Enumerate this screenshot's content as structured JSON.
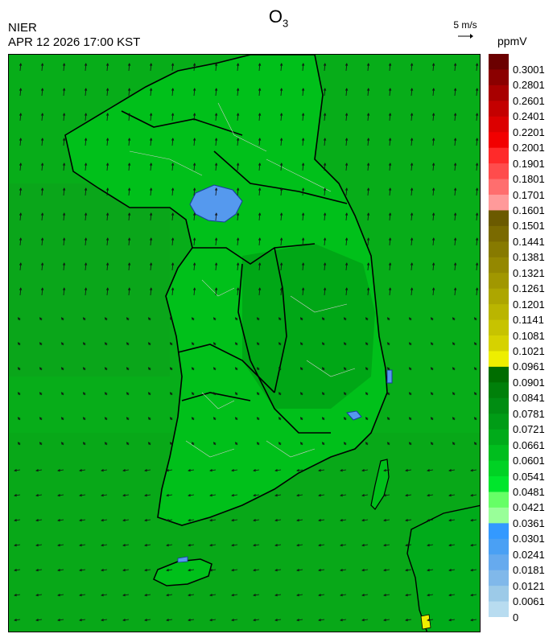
{
  "header": {
    "title_main": "O",
    "title_sub": "3",
    "agency": "NIER",
    "timestamp": "APR 12 2026 17:00 KST",
    "wind_reference": "5 m/s",
    "unit": "ppmV"
  },
  "legend": {
    "labels": [
      "0.3001",
      "0.2801",
      "0.2601",
      "0.2401",
      "0.2201",
      "0.2001",
      "0.1901",
      "0.1801",
      "0.1701",
      "0.1601",
      "0.1501",
      "0.1441",
      "0.1381",
      "0.1321",
      "0.1261",
      "0.1201",
      "0.1141",
      "0.1081",
      "0.1021",
      "0.0961",
      "0.0901",
      "0.0841",
      "0.0781",
      "0.0721",
      "0.0661",
      "0.0601",
      "0.0541",
      "0.0481",
      "0.0421",
      "0.0361",
      "0.0301",
      "0.0241",
      "0.0181",
      "0.0121",
      "0.0061",
      "0"
    ],
    "colors": [
      "#6b0000",
      "#8b0000",
      "#a80000",
      "#c40000",
      "#dc0000",
      "#f20000",
      "#ff2a2a",
      "#ff4c4c",
      "#ff6e6e",
      "#ff9a9a",
      "#6b5a00",
      "#7a6a00",
      "#877a00",
      "#948800",
      "#a19700",
      "#ada600",
      "#bab500",
      "#c7c300",
      "#d6d200",
      "#eeee00",
      "#006d00",
      "#00800a",
      "#008d12",
      "#009c16",
      "#00ab1a",
      "#00be1e",
      "#00d224",
      "#00e62c",
      "#66ff66",
      "#99ff99",
      "#3399ff",
      "#4aa0f4",
      "#66aaee",
      "#80b8ea",
      "#9ccae8",
      "#b8dcf0"
    ]
  },
  "map": {
    "land_color": "#00c01a",
    "sea_color": "#06ad18",
    "low_ozone_color": "#5599ee",
    "high_ozone_color": "#eeee00",
    "border_color": "#000000",
    "district_line_color": "#cccccc"
  }
}
